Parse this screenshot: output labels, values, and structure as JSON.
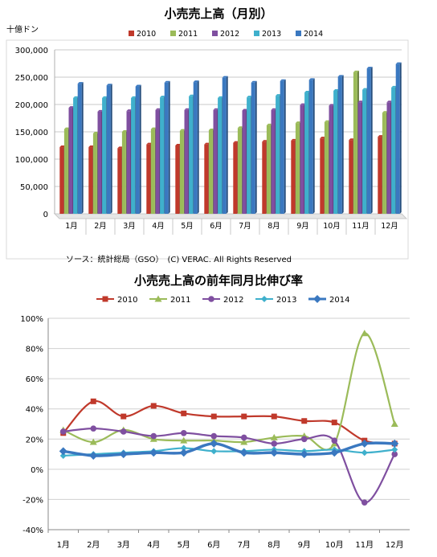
{
  "colors": {
    "2010": "#c0392b",
    "2011": "#9bbb59",
    "2012": "#7f4fa0",
    "2013": "#3fb0cc",
    "2014": "#3a78c0"
  },
  "source_note": "ソース：統計総局（GSO）　(C) VERAC. All Rights Reserved",
  "chart_data": [
    {
      "type": "bar",
      "title": "小売売上高（月別）",
      "ylabel": "十億ドン",
      "ylim": [
        0,
        300000
      ],
      "yticks": [
        "0",
        "50,000",
        "100,000",
        "150,000",
        "200,000",
        "250,000",
        "300,000"
      ],
      "categories": [
        "1月",
        "2月",
        "3月",
        "4月",
        "5月",
        "6月",
        "7月",
        "8月",
        "9月",
        "10月",
        "11月",
        "12月"
      ],
      "legend_position": "top",
      "series": [
        {
          "name": "2010",
          "values": [
            122000,
            122000,
            120000,
            127000,
            125000,
            127000,
            130000,
            132000,
            134000,
            138000,
            135000,
            141000
          ]
        },
        {
          "name": "2011",
          "values": [
            155000,
            147000,
            150000,
            155000,
            152000,
            153000,
            157000,
            162000,
            166000,
            168000,
            259000,
            185000
          ]
        },
        {
          "name": "2012",
          "values": [
            194000,
            187000,
            188000,
            190000,
            190000,
            190000,
            189000,
            190000,
            199000,
            198000,
            204000,
            204000
          ]
        },
        {
          "name": "2013",
          "values": [
            212000,
            212000,
            212000,
            213000,
            215000,
            212000,
            213000,
            216000,
            222000,
            225000,
            227000,
            231000
          ]
        },
        {
          "name": "2014",
          "values": [
            238000,
            235000,
            233000,
            240000,
            241000,
            249000,
            240000,
            243000,
            245000,
            251000,
            266000,
            274000
          ]
        }
      ]
    },
    {
      "type": "line",
      "title": "小売売上高の前年同月比伸び率",
      "ylim": [
        -40,
        100
      ],
      "yticks": [
        "-40%",
        "-20%",
        "0%",
        "20%",
        "40%",
        "60%",
        "80%",
        "100%"
      ],
      "categories": [
        "1月",
        "2月",
        "3月",
        "4月",
        "5月",
        "6月",
        "7月",
        "8月",
        "9月",
        "10月",
        "11月",
        "12月"
      ],
      "legend_position": "top",
      "series": [
        {
          "name": "2010",
          "values": [
            24,
            45,
            35,
            42,
            37,
            35,
            35,
            35,
            32,
            31,
            19,
            17
          ]
        },
        {
          "name": "2011",
          "values": [
            26,
            18,
            26,
            20,
            19,
            19,
            18,
            21,
            22,
            17,
            90,
            30
          ]
        },
        {
          "name": "2012",
          "values": [
            25,
            27,
            25,
            22,
            24,
            22,
            21,
            17,
            20,
            19,
            -22,
            10
          ]
        },
        {
          "name": "2013",
          "values": [
            9,
            10,
            11,
            12,
            14,
            12,
            12,
            13,
            12,
            13,
            11,
            13
          ]
        },
        {
          "name": "2014",
          "values": [
            12,
            9,
            10,
            11,
            11,
            17,
            11,
            11,
            10,
            11,
            17,
            17
          ]
        }
      ]
    }
  ]
}
